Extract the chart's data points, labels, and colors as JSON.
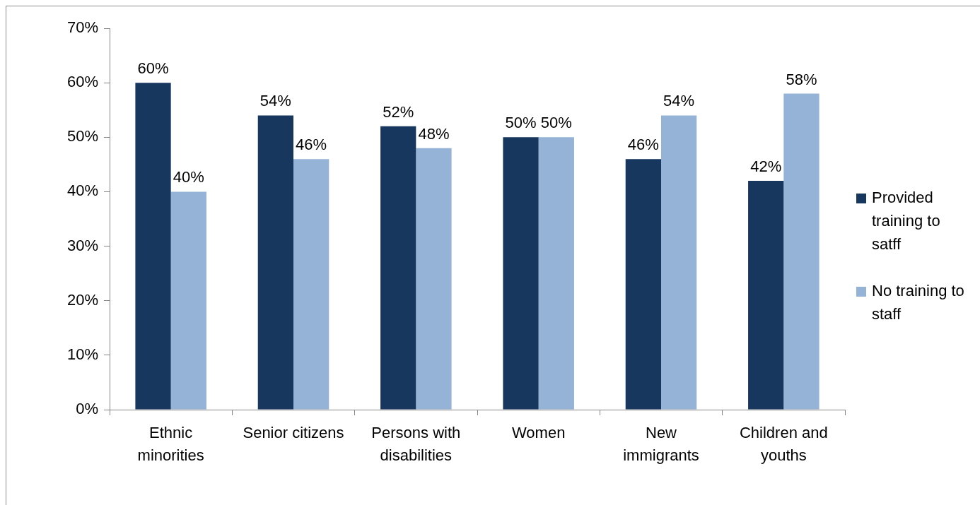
{
  "chart_data": {
    "type": "bar",
    "categories": [
      "Ethnic minorities",
      "Senior citizens",
      "Persons with disabilities",
      "Women",
      "New immigrants",
      "Children and youths"
    ],
    "series": [
      {
        "name": "Provided training to satff",
        "color": "#17375e",
        "values": [
          60,
          54,
          52,
          50,
          46,
          42
        ],
        "value_labels": [
          "60%",
          "54%",
          "52%",
          "50%",
          "46%",
          "42%"
        ]
      },
      {
        "name": "No training to staff",
        "color": "#95b3d7",
        "values": [
          40,
          46,
          48,
          50,
          54,
          58
        ],
        "value_labels": [
          "40%",
          "46%",
          "48%",
          "50%",
          "54%",
          "58%"
        ]
      }
    ],
    "ylim": [
      0,
      70
    ],
    "yticks": [
      {
        "value": 0,
        "label": "0%"
      },
      {
        "value": 10,
        "label": "10%"
      },
      {
        "value": 20,
        "label": "20%"
      },
      {
        "value": 30,
        "label": "30%"
      },
      {
        "value": 40,
        "label": "40%"
      },
      {
        "value": 50,
        "label": "50%"
      },
      {
        "value": 60,
        "label": "60%"
      },
      {
        "value": 70,
        "label": "70%"
      }
    ],
    "legend": "right"
  }
}
